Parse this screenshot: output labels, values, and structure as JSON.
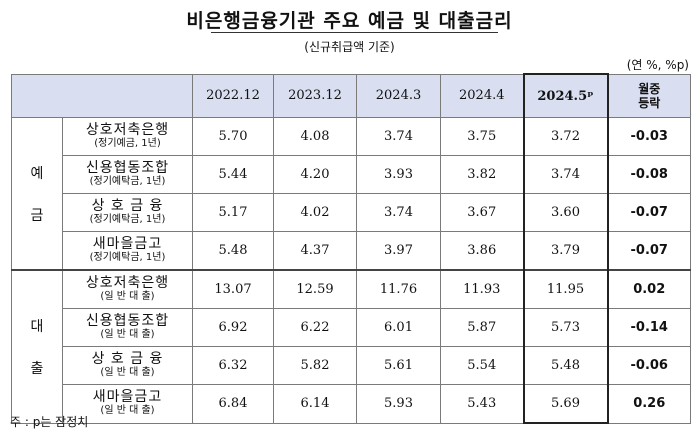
{
  "title": "비은행금융기관 주요 예금 및 대출금리",
  "subtitle": "(신규취급액 기준)",
  "unit": "(연 %, %p)",
  "header": {
    "periods": [
      "2022.12",
      "2023.12",
      "2024.3",
      "2024.4",
      "2024.5ᵖ"
    ],
    "change_label_1": "월중",
    "change_label_2": "등락"
  },
  "deposit": {
    "label_1": "예",
    "label_2": "금",
    "rows": [
      {
        "name": "상호저축은행",
        "sub": "(정기예금, 1년)",
        "values": [
          "5.70",
          "4.08",
          "3.74",
          "3.75",
          "3.72"
        ],
        "change": "-0.03"
      },
      {
        "name": "신용협동조합",
        "sub": "(정기예탁금, 1년)",
        "values": [
          "5.44",
          "4.20",
          "3.93",
          "3.82",
          "3.74"
        ],
        "change": "-0.08"
      },
      {
        "name": "상 호 금 융",
        "sub": "(정기예탁금, 1년)",
        "values": [
          "5.17",
          "4.02",
          "3.74",
          "3.67",
          "3.60"
        ],
        "change": "-0.07"
      },
      {
        "name": "새마을금고",
        "sub": "(정기예탁금, 1년)",
        "values": [
          "5.48",
          "4.37",
          "3.97",
          "3.86",
          "3.79"
        ],
        "change": "-0.07"
      }
    ]
  },
  "loan": {
    "label_1": "대",
    "label_2": "출",
    "rows": [
      {
        "name": "상호저축은행",
        "sub": "(일 반 대 출)",
        "values": [
          "13.07",
          "12.59",
          "11.76",
          "11.93",
          "11.95"
        ],
        "change": "0.02"
      },
      {
        "name": "신용협동조합",
        "sub": "(일 반 대 출)",
        "values": [
          "6.92",
          "6.22",
          "6.01",
          "5.87",
          "5.73"
        ],
        "change": "-0.14"
      },
      {
        "name": "상 호 금 융",
        "sub": "(일 반 대 출)",
        "values": [
          "6.32",
          "5.82",
          "5.61",
          "5.54",
          "5.48"
        ],
        "change": "-0.06"
      },
      {
        "name": "새마을금고",
        "sub": "(일 반 대 출)",
        "values": [
          "6.84",
          "6.14",
          "5.93",
          "5.43",
          "5.69"
        ],
        "change": "0.26"
      }
    ]
  },
  "footnote": "주 : p는 잠정치"
}
